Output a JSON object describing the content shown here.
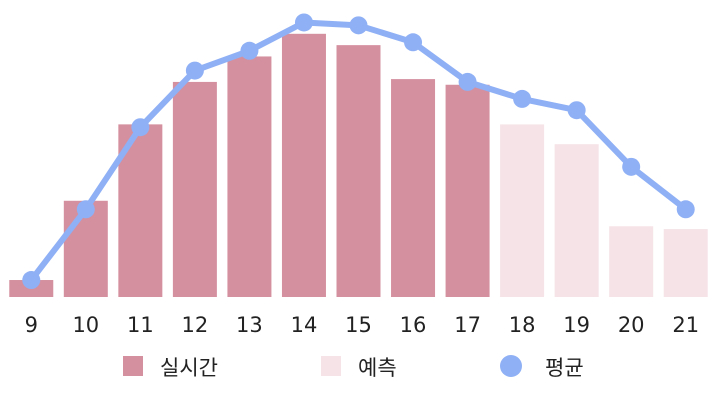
{
  "chart_data": {
    "type": "bar",
    "categories": [
      "9",
      "10",
      "11",
      "12",
      "13",
      "14",
      "15",
      "16",
      "17",
      "18",
      "19",
      "20",
      "21"
    ],
    "series": [
      {
        "name": "실시간",
        "type": "bar",
        "color": "#d4909f",
        "values": [
          6,
          34,
          61,
          76,
          85,
          93,
          89,
          77,
          75,
          null,
          null,
          null,
          null
        ]
      },
      {
        "name": "예측",
        "type": "bar",
        "color": "#f5e3e7",
        "values": [
          null,
          null,
          null,
          null,
          null,
          null,
          null,
          null,
          null,
          61,
          54,
          25,
          24
        ]
      },
      {
        "name": "평균",
        "type": "line",
        "color": "#8fb0f5",
        "values": [
          6,
          31,
          60,
          80,
          87,
          97,
          96,
          90,
          76,
          70,
          66,
          46,
          31
        ]
      }
    ],
    "ylim": [
      0,
      100
    ],
    "grid": false,
    "legend_position": "bottom"
  }
}
